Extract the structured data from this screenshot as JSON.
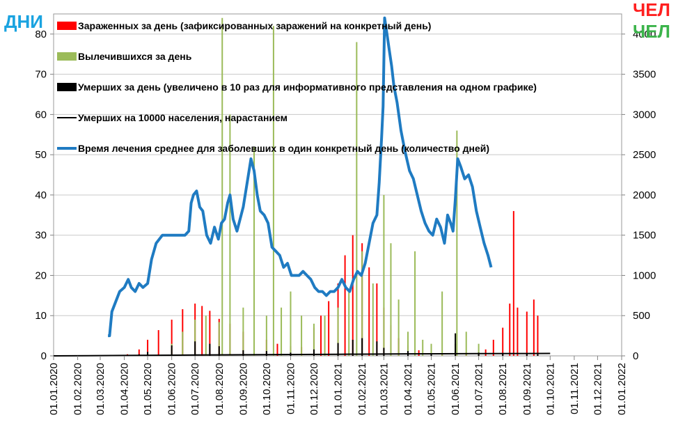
{
  "colors": {
    "infected": "#ff0000",
    "recovered": "#9bbb59",
    "deaths": "#000000",
    "cumulative_deaths": "#000000",
    "treatment_time": "#1f7bc2",
    "unit_days": "#1aa3e0",
    "unit_people_red": "#ff2020",
    "unit_people_green": "#3cb44b"
  },
  "units": {
    "left": "ДНИ",
    "right_top": "ЧЕЛ",
    "right_bottom": "ЧЕЛ"
  },
  "legend": [
    {
      "key": "infected",
      "label": "Зараженных за день (зафиксированных заражений на конкретный день)",
      "swatch": "bar"
    },
    {
      "key": "recovered",
      "label": "Вылечившихся за день",
      "swatch": "bar"
    },
    {
      "key": "deaths",
      "label": "Умерших за день (увеличено в 10 раз для информативного представления на одном графике)",
      "swatch": "bar"
    },
    {
      "key": "cumulative_deaths",
      "label": "Умерших на 10000  населения, нарастанием",
      "swatch": "line"
    },
    {
      "key": "treatment_time",
      "label": "Время лечения среднее для заболевших в один конкретный  день (количество дней)",
      "swatch": "line"
    }
  ],
  "chart_data": {
    "type": "bar",
    "left_axis": {
      "min": 0,
      "max": 85,
      "ticks": [
        "0",
        "10",
        "20",
        "30",
        "40",
        "50",
        "60",
        "70",
        "80"
      ]
    },
    "right_axis": {
      "min": 0,
      "max": 4250,
      "ticks": [
        "0",
        "500",
        "1000",
        "1500",
        "2000",
        "2500",
        "3000",
        "3500",
        "4000"
      ]
    },
    "x_axis": {
      "start": "2020-01-01",
      "end": "2022-01-01",
      "tick_labels": [
        "01.01.2020",
        "01.02.2020",
        "01.03.2020",
        "01.04.2020",
        "01.05.2020",
        "01.06.2020",
        "01.07.2020",
        "01.08.2020",
        "01.09.2020",
        "01.10.2020",
        "01.11.2020",
        "01.12.2020",
        "01.01.2021",
        "01.02.2021",
        "01.03.2021",
        "01.04.2021",
        "01.05.2021",
        "01.06.2021",
        "01.07.2021",
        "01.08.2021",
        "01.09.2021",
        "01.10.2021",
        "01.11.2021",
        "01.12.2021",
        "01.01.2022"
      ],
      "tick_dates": [
        "2020-01-01",
        "2020-02-01",
        "2020-03-01",
        "2020-04-01",
        "2020-05-01",
        "2020-06-01",
        "2020-07-01",
        "2020-08-01",
        "2020-09-01",
        "2020-10-01",
        "2020-11-01",
        "2020-12-01",
        "2021-01-01",
        "2021-02-01",
        "2021-03-01",
        "2021-04-01",
        "2021-05-01",
        "2021-06-01",
        "2021-07-01",
        "2021-08-01",
        "2021-09-01",
        "2021-10-01",
        "2021-11-01",
        "2021-12-01",
        "2022-01-01"
      ]
    },
    "series": [
      {
        "key": "infected",
        "name": "Зараженных за день (зафиксированных заражений на конкретный день)",
        "axis": "right",
        "kind": "bar",
        "x": [
          "2020-04-05",
          "2020-04-20",
          "2020-05-01",
          "2020-05-15",
          "2020-06-01",
          "2020-06-15",
          "2020-07-01",
          "2020-07-10",
          "2020-07-20",
          "2020-08-01",
          "2020-08-15",
          "2020-09-01",
          "2020-09-15",
          "2020-10-01",
          "2020-10-15",
          "2020-11-01",
          "2020-11-15",
          "2020-12-01",
          "2020-12-10",
          "2020-12-20",
          "2021-01-01",
          "2021-01-10",
          "2021-01-20",
          "2021-02-01",
          "2021-02-10",
          "2021-02-20",
          "2021-03-01",
          "2021-03-10",
          "2021-03-20",
          "2021-04-01",
          "2021-04-15",
          "2021-05-01",
          "2021-05-15",
          "2021-06-01",
          "2021-06-15",
          "2021-07-01",
          "2021-07-10",
          "2021-07-20",
          "2021-08-01",
          "2021-08-10",
          "2021-08-15",
          "2021-08-20",
          "2021-09-01",
          "2021-09-10",
          "2021-09-15"
        ],
        "values": [
          20,
          80,
          200,
          320,
          450,
          580,
          650,
          620,
          560,
          460,
          400,
          300,
          260,
          200,
          150,
          120,
          110,
          350,
          500,
          680,
          900,
          1250,
          1500,
          1400,
          1100,
          900,
          600,
          380,
          220,
          130,
          70,
          40,
          30,
          40,
          40,
          40,
          80,
          200,
          350,
          650,
          1800,
          600,
          550,
          700,
          500
        ]
      },
      {
        "key": "recovered",
        "name": "Вылечившихся за день",
        "axis": "right",
        "kind": "bar",
        "x": [
          "2020-05-01",
          "2020-06-01",
          "2020-06-15",
          "2020-07-01",
          "2020-07-15",
          "2020-08-01",
          "2020-08-05",
          "2020-08-15",
          "2020-09-01",
          "2020-09-15",
          "2020-10-01",
          "2020-10-10",
          "2020-10-20",
          "2020-11-01",
          "2020-11-15",
          "2020-12-01",
          "2020-12-15",
          "2021-01-01",
          "2021-01-15",
          "2021-01-25",
          "2021-02-01",
          "2021-02-15",
          "2021-03-01",
          "2021-03-10",
          "2021-03-20",
          "2021-04-01",
          "2021-04-10",
          "2021-04-20",
          "2021-05-01",
          "2021-05-15",
          "2021-06-01",
          "2021-06-03",
          "2021-06-15",
          "2021-07-01"
        ],
        "values": [
          40,
          150,
          300,
          450,
          500,
          420,
          4200,
          3000,
          600,
          2600,
          500,
          4100,
          600,
          800,
          500,
          400,
          500,
          600,
          800,
          3900,
          1300,
          900,
          2000,
          1400,
          700,
          300,
          1300,
          200,
          150,
          800,
          150,
          2800,
          300,
          150
        ]
      },
      {
        "key": "deaths",
        "name": "Умерших за день (увеличено в 10 раз для информативного представления на одном графике)",
        "axis": "right",
        "kind": "bar",
        "x": [
          "2020-04-20",
          "2020-05-01",
          "2020-06-01",
          "2020-07-01",
          "2020-07-20",
          "2020-08-01",
          "2020-09-01",
          "2020-10-01",
          "2020-11-01",
          "2020-12-01",
          "2021-01-01",
          "2021-01-20",
          "2021-02-01",
          "2021-02-20",
          "2021-03-01",
          "2021-04-01",
          "2021-05-01",
          "2021-06-01",
          "2021-07-01",
          "2021-08-01",
          "2021-09-01",
          "2021-09-15"
        ],
        "values": [
          20,
          50,
          130,
          180,
          150,
          120,
          70,
          60,
          40,
          80,
          160,
          200,
          220,
          180,
          100,
          60,
          30,
          280,
          40,
          30,
          30,
          20
        ]
      },
      {
        "key": "cumulative_deaths",
        "name": "Умерших на 10000  населения, нарастанием",
        "axis": "left",
        "kind": "line",
        "x": [
          "2020-01-01",
          "2020-04-01",
          "2020-07-01",
          "2020-10-01",
          "2021-01-01",
          "2021-04-01",
          "2021-07-01",
          "2021-10-01"
        ],
        "values": [
          0,
          0.1,
          0.2,
          0.3,
          0.4,
          0.5,
          0.55,
          0.6
        ]
      },
      {
        "key": "treatment_time",
        "name": "Время лечения среднее для заболевших в один конкретный  день (количество дней)",
        "axis": "left",
        "kind": "line",
        "x": [
          "2020-03-11",
          "2020-03-13",
          "2020-03-16",
          "2020-03-20",
          "2020-03-26",
          "2020-04-01",
          "2020-04-06",
          "2020-04-10",
          "2020-04-15",
          "2020-04-20",
          "2020-04-25",
          "2020-05-01",
          "2020-05-06",
          "2020-05-12",
          "2020-05-20",
          "2020-05-31",
          "2020-06-06",
          "2020-06-11",
          "2020-06-18",
          "2020-06-23",
          "2020-06-26",
          "2020-06-29",
          "2020-07-03",
          "2020-07-07",
          "2020-07-11",
          "2020-07-16",
          "2020-07-21",
          "2020-07-26",
          "2020-07-31",
          "2020-08-04",
          "2020-08-08",
          "2020-08-12",
          "2020-08-15",
          "2020-08-19",
          "2020-08-24",
          "2020-08-28",
          "2020-09-01",
          "2020-09-06",
          "2020-09-11",
          "2020-09-15",
          "2020-09-19",
          "2020-09-23",
          "2020-09-28",
          "2020-10-03",
          "2020-10-08",
          "2020-10-13",
          "2020-10-18",
          "2020-10-23",
          "2020-10-28",
          "2020-11-02",
          "2020-11-07",
          "2020-11-12",
          "2020-11-17",
          "2020-11-22",
          "2020-11-27",
          "2020-12-02",
          "2020-12-07",
          "2020-12-12",
          "2020-12-17",
          "2020-12-22",
          "2020-12-27",
          "2021-01-01",
          "2021-01-06",
          "2021-01-11",
          "2021-01-16",
          "2021-01-21",
          "2021-01-26",
          "2021-01-31",
          "2021-02-05",
          "2021-02-10",
          "2021-02-15",
          "2021-02-20",
          "2021-02-23",
          "2021-02-26",
          "2021-02-28",
          "2021-03-02",
          "2021-03-05",
          "2021-03-08",
          "2021-03-11",
          "2021-03-14",
          "2021-03-18",
          "2021-03-23",
          "2021-03-28",
          "2021-04-03",
          "2021-04-08",
          "2021-04-13",
          "2021-04-18",
          "2021-04-23",
          "2021-04-28",
          "2021-05-03",
          "2021-05-08",
          "2021-05-13",
          "2021-05-18",
          "2021-05-22",
          "2021-05-26",
          "2021-05-29",
          "2021-06-01",
          "2021-06-04",
          "2021-06-08",
          "2021-06-13",
          "2021-06-18",
          "2021-06-23",
          "2021-06-28",
          "2021-07-03",
          "2021-07-08",
          "2021-07-13",
          "2021-07-17"
        ],
        "values": [
          5,
          5,
          11,
          13,
          16,
          17,
          19,
          17,
          16,
          18,
          17,
          18,
          24,
          28,
          30,
          30,
          30,
          30,
          30,
          31,
          38,
          40,
          41,
          37,
          36,
          30,
          28,
          32,
          29,
          33,
          34,
          38,
          40,
          34,
          31,
          34,
          37,
          43,
          49,
          46,
          40,
          36,
          35,
          33,
          27,
          26,
          25,
          22,
          23,
          20,
          20,
          20,
          21,
          20,
          19,
          17,
          16,
          16,
          15,
          16,
          16,
          17,
          19,
          17,
          16,
          19,
          21,
          20,
          23,
          28,
          33,
          35,
          43,
          54,
          62,
          84,
          80,
          76,
          72,
          67,
          63,
          56,
          51,
          46,
          44,
          40,
          36,
          33,
          31,
          30,
          34,
          32,
          28,
          35,
          33,
          31,
          39,
          49,
          47,
          44,
          45,
          42,
          36,
          32,
          28,
          25,
          22
        ]
      }
    ]
  }
}
